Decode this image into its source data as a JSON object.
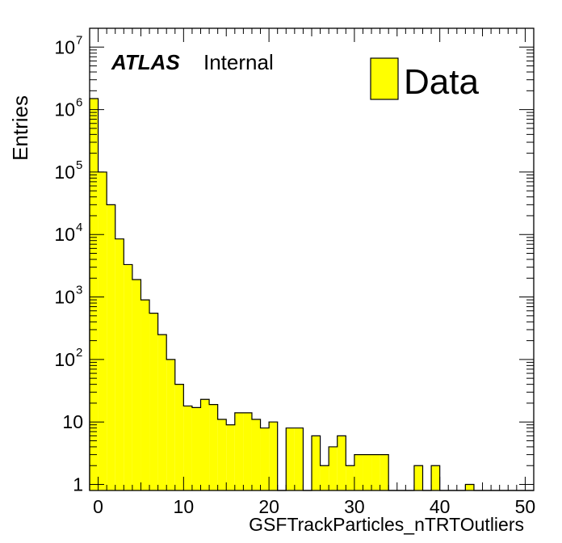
{
  "chart_data": {
    "type": "bar",
    "title": "",
    "xlabel": "GSFTrackParticles_nTRTOutliers",
    "ylabel": "Entries",
    "xlim": [
      -1,
      51
    ],
    "ylim": [
      0.8,
      20000000
    ],
    "y_scale": "log",
    "grid": false,
    "legend_position": "top-right",
    "fill_color": "#ffff00",
    "line_color": "#000000",
    "x_ticks": [
      0,
      10,
      20,
      30,
      40,
      50
    ],
    "bin_edges_start": -1,
    "bin_width": 1,
    "series": [
      {
        "name": "Data",
        "values": [
          1500000,
          100000,
          30000,
          8500,
          3300,
          1900,
          900,
          550,
          250,
          100,
          40,
          18,
          17,
          23,
          19,
          11,
          9,
          14,
          14,
          11,
          8,
          10,
          0,
          8,
          8,
          0,
          6,
          2,
          4,
          6,
          2,
          3,
          3,
          3,
          3,
          0,
          0,
          0,
          2,
          0,
          2,
          0,
          0,
          0,
          1,
          0,
          0,
          0,
          0,
          0,
          0,
          0
        ]
      }
    ]
  },
  "labels": {
    "atlas": "ATLAS",
    "internal": "Internal",
    "legend_entry": "Data",
    "x_title": "GSFTrackParticles_nTRTOutliers",
    "y_title": "Entries"
  }
}
